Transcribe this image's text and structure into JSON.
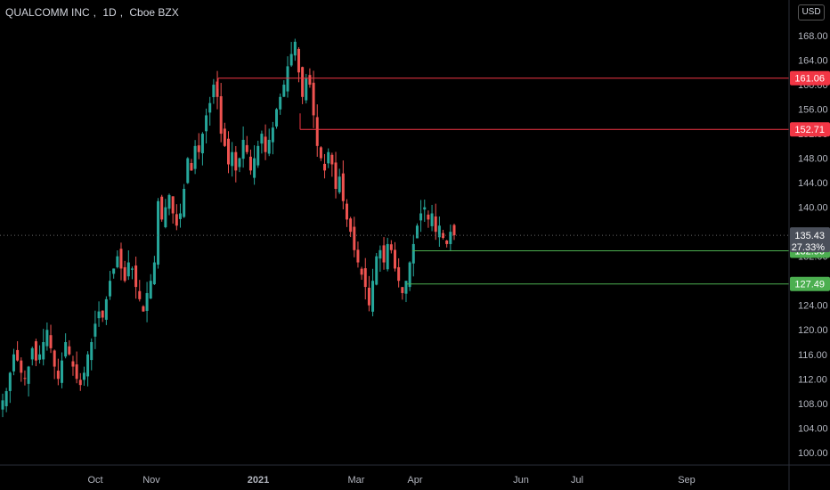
{
  "header": {
    "symbol": "QUALCOMM INC",
    "interval": "1D",
    "exchange": "Cboe BZX",
    "currency": "USD"
  },
  "colors": {
    "up": "#26a69a",
    "down": "#ef5350",
    "resistance": "#f23645",
    "support": "#4caf50",
    "last_price": "#a9a9a9"
  },
  "chart_data": {
    "type": "candlestick",
    "y_ticks": [
      "100.00",
      "104.00",
      "108.00",
      "112.00",
      "116.00",
      "120.00",
      "124.00",
      "128.00",
      "132.00",
      "136.00",
      "140.00",
      "144.00",
      "148.00",
      "152.00",
      "156.00",
      "160.00",
      "164.00",
      "168.00"
    ],
    "x_ticks": [
      "Oct",
      "Nov",
      "2021",
      "Mar",
      "Apr",
      "Jun",
      "Jul",
      "Sep"
    ],
    "ylim": [
      98,
      172
    ],
    "levels": [
      {
        "label": "161.06",
        "value": 161.06,
        "kind": "resistance",
        "start": "2020-12-09"
      },
      {
        "label": "152.71",
        "value": 152.71,
        "kind": "resistance",
        "start": "2021-01-20"
      },
      {
        "label": "132.90",
        "value": 132.9,
        "kind": "support",
        "start": "2021-03-31"
      },
      {
        "label": "127.49",
        "value": 127.49,
        "kind": "support",
        "start": "2021-03-26"
      }
    ],
    "last_price": {
      "label": "135.43",
      "value": 135.43,
      "change": "27.33%"
    },
    "series_close": [
      [
        108.5,
        110,
        113,
        116,
        115,
        113,
        112,
        114,
        117,
        115,
        116,
        118,
        120,
        117,
        114,
        112,
        115,
        118,
        116,
        114,
        112,
        111,
        113,
        116,
        118,
        121,
        123,
        122,
        125,
        128,
        130,
        132,
        130,
        128,
        131,
        130,
        127,
        125,
        123,
        126,
        128,
        131,
        141,
        138,
        140,
        142,
        139,
        137,
        139,
        143,
        148,
        146,
        150,
        149,
        152,
        155,
        157,
        160,
        158,
        152,
        150,
        147,
        149,
        146,
        148,
        151,
        149,
        146,
        148,
        150,
        152,
        149,
        151,
        153,
        156,
        158,
        160,
        163,
        165,
        167,
        162,
        158,
        161,
        160,
        155,
        150,
        148,
        146,
        149,
        147,
        143,
        145,
        141,
        138,
        136,
        133,
        131,
        129,
        127,
        124,
        128,
        132,
        133,
        131,
        134,
        133,
        130,
        128,
        126,
        128,
        131,
        134,
        137,
        139,
        140,
        138,
        139,
        136,
        137,
        135,
        134,
        136,
        135.43
      ]
    ]
  }
}
